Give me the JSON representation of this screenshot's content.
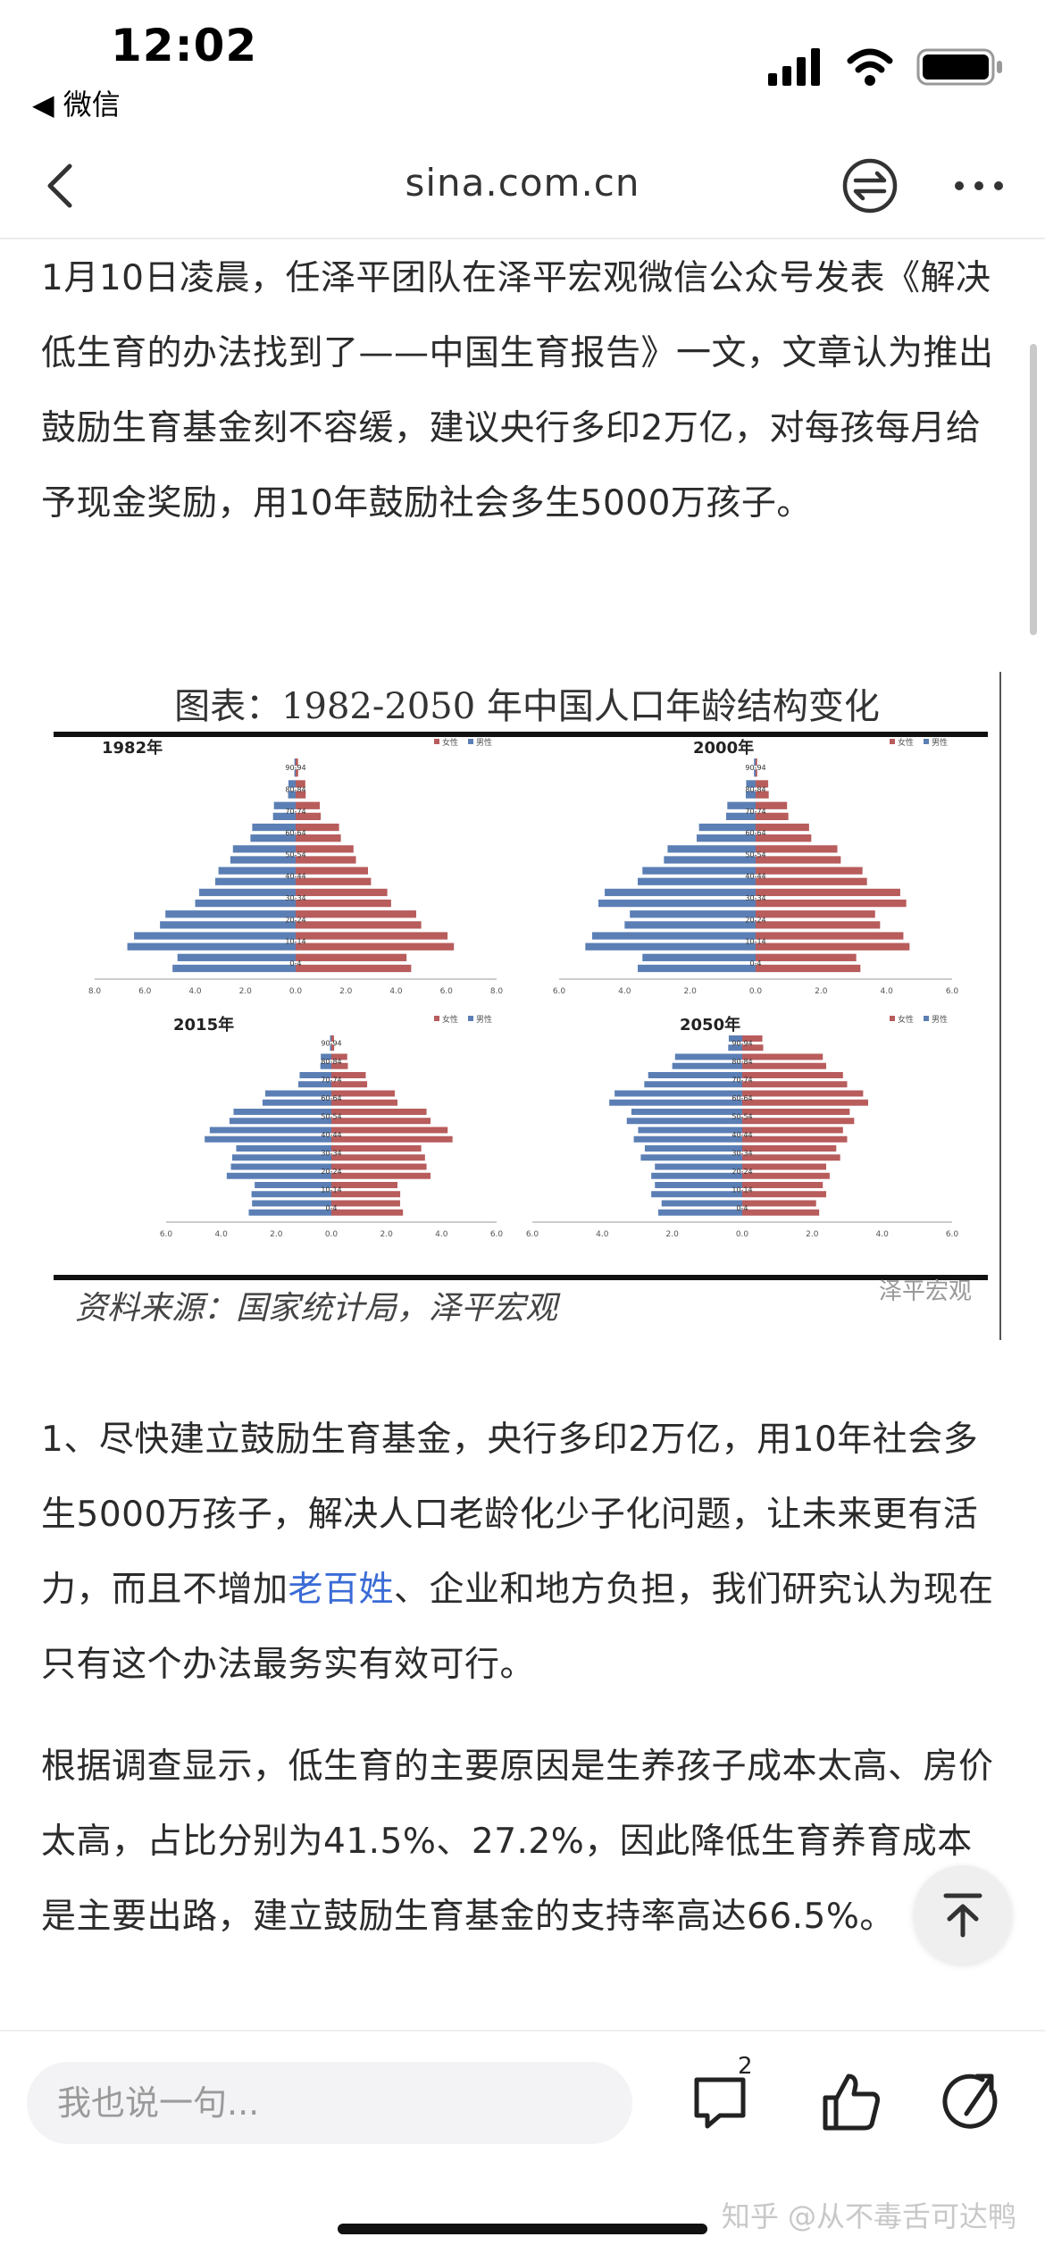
{
  "status_bar": {
    "time": "12:02",
    "back_app": "◀ 微信",
    "icons": [
      "signal-icon",
      "wifi-icon",
      "battery-icon"
    ]
  },
  "nav": {
    "title": "sina.com.cn",
    "icons": [
      "back-arrow-icon",
      "switch-icon",
      "more-icon"
    ]
  },
  "article": {
    "para1": "1月10日凌晨，任泽平团队在泽平宏观微信公众号发表《解决低生育的办法找到了——中国生育报告》一文，文章认为推出鼓励生育基金刻不容缓，建议央行多印2万亿，对每孩每月给予现金奖励，用10年鼓励社会多生5000万孩子。",
    "para2_before": "1、尽快建立鼓励生育基金，央行多印2万亿，用10年社会多生5000万孩子，解决人口老龄化少子化问题，让未来更有活力，而且不增加",
    "para2_link": "老百姓",
    "para2_after": "、企业和地方负担，我们研究认为现在只有这个办法最务实有效可行。",
    "para3": "根据调查显示，低生育的主要原因是生养孩子成本太高、房价太高，占比分别为41.5%、27.2%，因此降低生育养育成本是主要出路，建立鼓励生育基金的支持率高达66.5%。"
  },
  "figure": {
    "title": "图表：1982-2050 年中国人口年龄结构变化",
    "source": "资料来源：国家统计局，泽平宏观",
    "watermark": "泽平宏观",
    "legend": [
      "女性",
      "男性"
    ]
  },
  "chart_data": [
    {
      "type": "bar",
      "title": "1982年",
      "categories": [
        "0-4",
        "10-14",
        "20-24",
        "30-34",
        "40-44",
        "50-54",
        "60-64",
        "70-74",
        "80-84",
        "90-94"
      ],
      "series": [
        {
          "name": "女性",
          "values": [
            4.6,
            6.3,
            5.0,
            3.8,
            3.0,
            2.4,
            1.8,
            1.0,
            0.4,
            0.1
          ]
        },
        {
          "name": "男性",
          "values": [
            4.9,
            6.7,
            5.4,
            4.0,
            3.2,
            2.6,
            1.8,
            0.9,
            0.3,
            0.05
          ]
        }
      ],
      "xlim": [
        -8.0,
        8.0
      ],
      "xticks": [
        "8.0",
        "6.0",
        "4.0",
        "2.0",
        "0.0",
        "2.0",
        "4.0",
        "6.0",
        "8.0"
      ],
      "colors": [
        "#b85c5c",
        "#5b7fb5"
      ]
    },
    {
      "type": "bar",
      "title": "2000年",
      "categories": [
        "0-4",
        "10-14",
        "20-24",
        "30-34",
        "40-44",
        "50-54",
        "60-64",
        "70-74",
        "80-84",
        "90-94"
      ],
      "series": [
        {
          "name": "女性",
          "values": [
            3.2,
            4.7,
            3.8,
            4.6,
            3.4,
            2.6,
            1.7,
            1.0,
            0.4,
            0.05
          ]
        },
        {
          "name": "男性",
          "values": [
            3.6,
            5.2,
            4.0,
            4.8,
            3.6,
            2.8,
            1.8,
            0.9,
            0.3,
            0.05
          ]
        }
      ],
      "xlim": [
        -6.0,
        6.0
      ],
      "xticks": [
        "6.0",
        "4.0",
        "2.0",
        "0.0",
        "2.0",
        "4.0",
        "6.0"
      ],
      "colors": [
        "#b85c5c",
        "#5b7fb5"
      ]
    },
    {
      "type": "bar",
      "title": "2015年",
      "categories": [
        "0-4",
        "10-14",
        "20-24",
        "30-34",
        "40-44",
        "50-54",
        "60-64",
        "70-74",
        "80-84",
        "90-94"
      ],
      "series": [
        {
          "name": "女性",
          "values": [
            2.6,
            2.5,
            3.6,
            3.4,
            4.4,
            3.6,
            2.4,
            1.3,
            0.6,
            0.1
          ]
        },
        {
          "name": "男性",
          "values": [
            3.0,
            2.9,
            3.8,
            3.6,
            4.6,
            3.7,
            2.5,
            1.2,
            0.4,
            0.05
          ]
        }
      ],
      "xlim": [
        -6.0,
        6.0
      ],
      "xticks": [
        "6.0",
        "4.0",
        "2.0",
        "0.0",
        "2.0",
        "4.0",
        "6.0"
      ],
      "colors": [
        "#b85c5c",
        "#5b7fb5"
      ]
    },
    {
      "type": "bar",
      "title": "2050年",
      "categories": [
        "0-4",
        "10-14",
        "20-24",
        "30-34",
        "40-44",
        "50-54",
        "60-64",
        "70-74",
        "80-84",
        "90-94"
      ],
      "series": [
        {
          "name": "女性",
          "values": [
            2.2,
            2.4,
            2.5,
            2.8,
            3.0,
            3.2,
            3.6,
            3.0,
            2.4,
            0.6
          ]
        },
        {
          "name": "男性",
          "values": [
            2.4,
            2.6,
            2.6,
            2.9,
            3.1,
            3.3,
            3.8,
            2.8,
            2.0,
            0.4
          ]
        }
      ],
      "xlim": [
        -6.0,
        6.0
      ],
      "xticks": [
        "6.0",
        "4.0",
        "2.0",
        "0.0",
        "2.0",
        "4.0",
        "6.0"
      ],
      "colors": [
        "#b85c5c",
        "#5b7fb5"
      ]
    }
  ],
  "bottom_bar": {
    "comment_placeholder": "我也说一句...",
    "comment_count": "2",
    "icons": [
      "comment-icon",
      "like-icon",
      "share-icon"
    ],
    "watermark": "知乎 @从不毒舌可达鸭"
  }
}
